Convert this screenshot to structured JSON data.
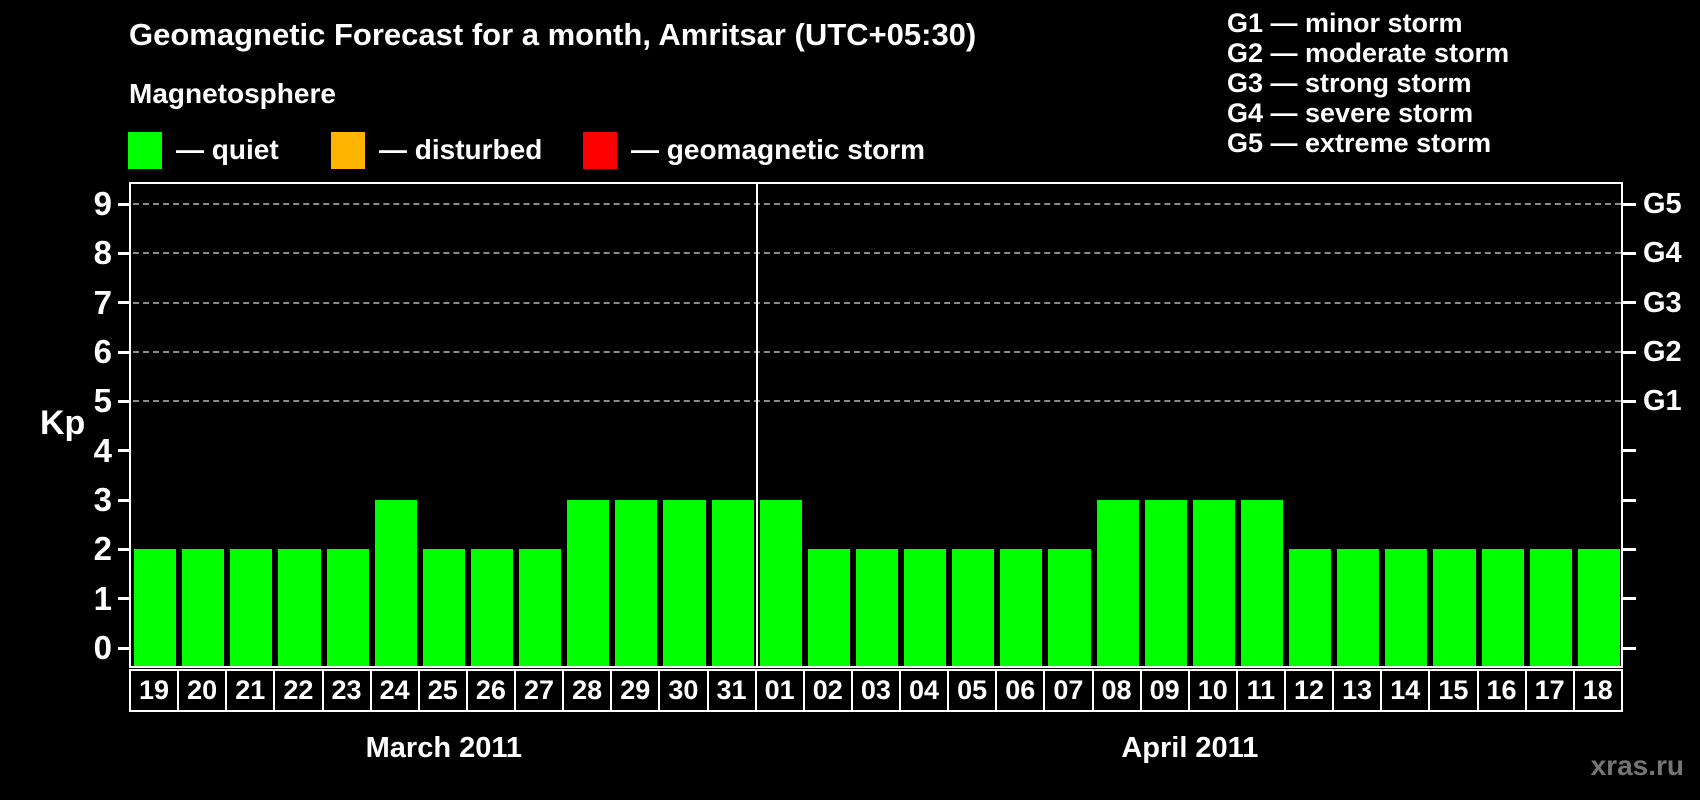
{
  "header": {
    "title": "Geomagnetic Forecast for a month, Amritsar (UTC+05:30)",
    "subtitle": "Magnetosphere",
    "legend": [
      {
        "name": "quiet",
        "label": "— quiet",
        "color": "#00ff00"
      },
      {
        "name": "disturbed",
        "label": "— disturbed",
        "color": "#ffb400"
      },
      {
        "name": "geomagnetic-storm",
        "label": "— geomagnetic storm",
        "color": "#ff0000"
      }
    ],
    "g_legend": [
      "G1 — minor storm",
      "G2 — moderate storm",
      "G3 — strong storm",
      "G4 — severe storm",
      "G5 — extreme storm"
    ]
  },
  "watermark": "xras.ru",
  "chart_data": {
    "type": "bar",
    "title": "Geomagnetic Forecast for a month, Amritsar (UTC+05:30)",
    "ylabel_left": "Kp",
    "ylim": [
      -0.4,
      9.4
    ],
    "grid": "dashed horizontal at Kp 5-9",
    "gridlines_at": [
      5,
      6,
      7,
      8,
      9
    ],
    "y_ticks_left": [
      0,
      1,
      2,
      3,
      4,
      5,
      6,
      7,
      8,
      9
    ],
    "y_ticks_right": [
      {
        "label": "G1",
        "kp": 5
      },
      {
        "label": "G2",
        "kp": 6
      },
      {
        "label": "G3",
        "kp": 7
      },
      {
        "label": "G4",
        "kp": 8
      },
      {
        "label": "G5",
        "kp": 9
      }
    ],
    "bar_color": "#00ff00",
    "categories": [
      "19",
      "20",
      "21",
      "22",
      "23",
      "24",
      "25",
      "26",
      "27",
      "28",
      "29",
      "30",
      "31",
      "01",
      "02",
      "03",
      "04",
      "05",
      "06",
      "07",
      "08",
      "09",
      "10",
      "11",
      "12",
      "13",
      "14",
      "15",
      "16",
      "17",
      "18"
    ],
    "values": [
      2,
      2,
      2,
      2,
      2,
      3,
      2,
      2,
      2,
      3,
      3,
      3,
      3,
      3,
      2,
      2,
      2,
      2,
      2,
      2,
      3,
      3,
      3,
      3,
      2,
      2,
      2,
      2,
      2,
      2,
      2
    ],
    "groups": [
      {
        "label": "March 2011",
        "start": 0,
        "count": 13
      },
      {
        "label": "April 2011",
        "start": 13,
        "count": 18
      }
    ]
  }
}
